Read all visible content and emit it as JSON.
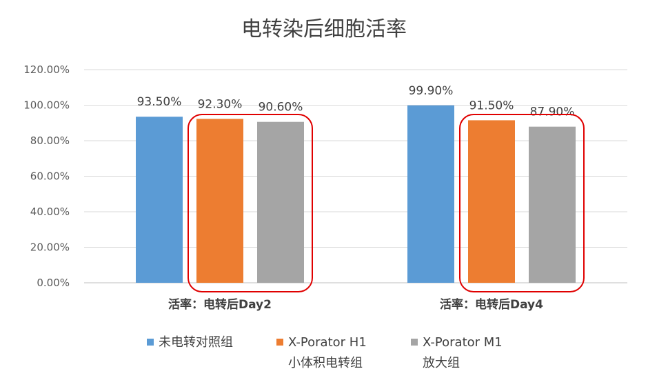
{
  "chart_data": {
    "type": "bar",
    "title": "电转染后细胞活率",
    "xlabel": "",
    "ylabel": "",
    "categories": [
      "活率：电转后Day2",
      "活率：电转后Day4"
    ],
    "series": [
      {
        "name": "未电转对照组",
        "name_lines": [
          "未电转对照组"
        ],
        "color": "#5B9BD5",
        "values": [
          93.5,
          99.9
        ],
        "labels": [
          "93.50%",
          "99.90%"
        ]
      },
      {
        "name": "X-Porator H1 小体积电转组",
        "name_lines": [
          "X-Porator H1",
          "小体积电转组"
        ],
        "color": "#ED7D31",
        "values": [
          92.3,
          91.5
        ],
        "labels": [
          "92.30%",
          "91.50%"
        ]
      },
      {
        "name": "X-Porator M1 放大组",
        "name_lines": [
          "X-Porator M1",
          "放大组"
        ],
        "color": "#A5A5A5",
        "values": [
          90.6,
          87.9
        ],
        "labels": [
          "90.60%",
          "87.90%"
        ]
      }
    ],
    "ylim": [
      0,
      120
    ],
    "yticks": [
      0,
      20,
      40,
      60,
      80,
      100,
      120
    ],
    "ytick_labels": [
      "0.00%",
      "20.00%",
      "40.00%",
      "60.00%",
      "80.00%",
      "100.00%",
      "120.00%"
    ],
    "grid": true,
    "legend": "bottom",
    "highlight_color": "#E00000"
  }
}
